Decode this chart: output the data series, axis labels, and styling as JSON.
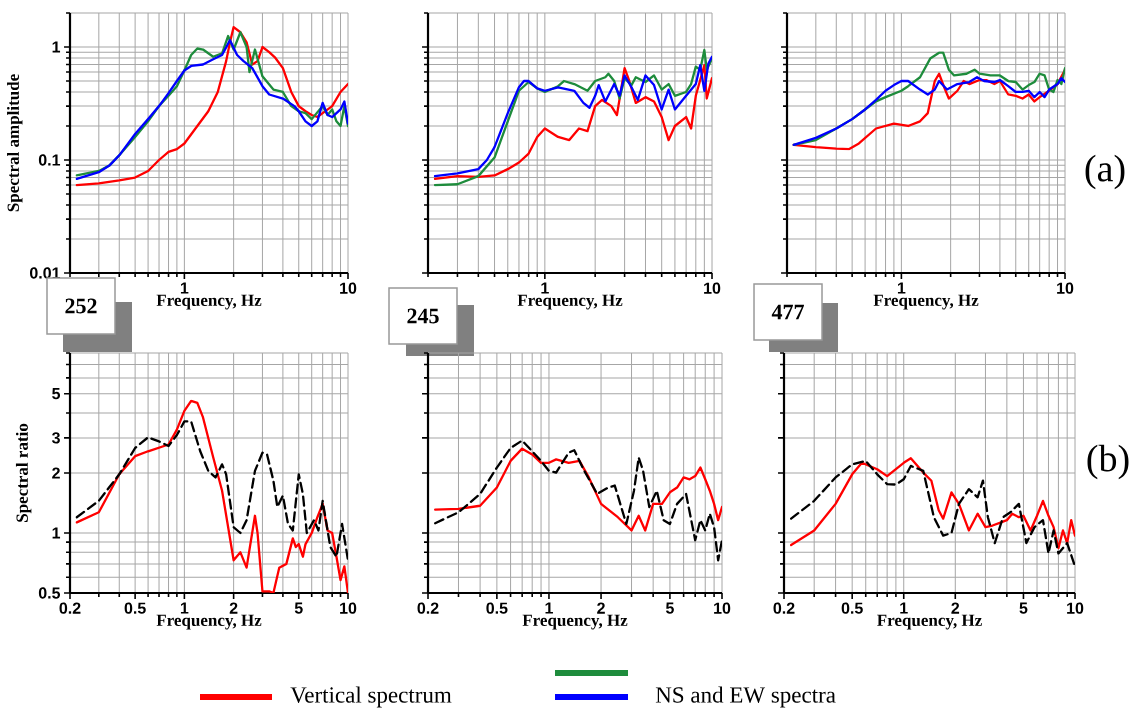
{
  "chart_data": [
    {
      "type": "line",
      "log": "xy",
      "grid": true,
      "xlabel": "Frequency, Hz",
      "ylabel": "Spectral amplitude",
      "xlim": [
        0.2,
        10
      ],
      "ylim": [
        0.01,
        2
      ],
      "xticks": [
        1,
        10
      ],
      "yticks": [
        0.01,
        0.1,
        1
      ],
      "legend": "bottom",
      "annotations": [
        "252"
      ],
      "series": [
        {
          "name": "Vertical spectrum",
          "color": "#ff0000",
          "x": [
            0.22,
            0.3,
            0.4,
            0.5,
            0.6,
            0.7,
            0.8,
            0.9,
            1.0,
            1.2,
            1.4,
            1.6,
            1.8,
            1.9,
            2.0,
            2.2,
            2.4,
            2.6,
            2.8,
            3.0,
            3.3,
            3.6,
            4.0,
            4.5,
            5,
            5.5,
            6,
            6.5,
            7,
            8,
            9,
            10
          ],
          "values": [
            0.06,
            0.062,
            0.066,
            0.07,
            0.08,
            0.1,
            0.118,
            0.125,
            0.14,
            0.2,
            0.27,
            0.4,
            0.75,
            1.1,
            1.5,
            1.35,
            1.1,
            0.7,
            0.75,
            1.0,
            0.9,
            0.8,
            0.65,
            0.4,
            0.3,
            0.27,
            0.25,
            0.24,
            0.26,
            0.3,
            0.4,
            0.47
          ]
        },
        {
          "color": "#1e8c3c",
          "x": [
            0.22,
            0.3,
            0.35,
            0.4,
            0.5,
            0.6,
            0.7,
            0.8,
            0.9,
            1.0,
            1.1,
            1.2,
            1.3,
            1.5,
            1.7,
            1.85,
            2.0,
            2.2,
            2.4,
            2.5,
            2.7,
            3.0,
            3.5,
            4.0,
            4.5,
            5,
            5.5,
            6,
            7,
            7.5,
            8,
            8.5,
            9,
            9.5,
            10
          ],
          "values": [
            0.073,
            0.08,
            0.09,
            0.11,
            0.16,
            0.22,
            0.3,
            0.37,
            0.45,
            0.62,
            0.85,
            0.97,
            0.95,
            0.82,
            0.88,
            1.25,
            0.95,
            1.35,
            1.0,
            0.6,
            0.95,
            0.55,
            0.42,
            0.4,
            0.3,
            0.27,
            0.26,
            0.23,
            0.3,
            0.25,
            0.28,
            0.22,
            0.2,
            0.3,
            0.2
          ]
        },
        {
          "name": "NS and EW spectra",
          "color": "#0000ff",
          "x": [
            0.22,
            0.3,
            0.35,
            0.4,
            0.5,
            0.6,
            0.7,
            0.8,
            0.9,
            1.0,
            1.1,
            1.3,
            1.5,
            1.7,
            1.9,
            2.1,
            2.3,
            2.6,
            3.0,
            3.3,
            4,
            4.7,
            5,
            5.5,
            6,
            6.5,
            7,
            7.5,
            8,
            9,
            9.5,
            10
          ],
          "values": [
            0.068,
            0.078,
            0.09,
            0.11,
            0.17,
            0.23,
            0.3,
            0.39,
            0.5,
            0.62,
            0.68,
            0.7,
            0.78,
            0.85,
            1.15,
            0.85,
            0.75,
            0.65,
            0.45,
            0.38,
            0.35,
            0.3,
            0.27,
            0.22,
            0.2,
            0.22,
            0.32,
            0.25,
            0.24,
            0.28,
            0.33,
            0.21
          ]
        }
      ]
    },
    {
      "type": "line",
      "log": "xy",
      "grid": true,
      "xlabel": "Frequency, Hz",
      "xlim": [
        0.2,
        10
      ],
      "ylim": [
        0.01,
        2
      ],
      "xticks": [
        1,
        10
      ],
      "yticks": [
        0.01,
        0.1,
        1
      ],
      "tick_labels": "x",
      "annotations": [
        "245"
      ],
      "series": [
        {
          "color": "#ff0000",
          "x": [
            0.22,
            0.3,
            0.4,
            0.5,
            0.6,
            0.7,
            0.8,
            0.9,
            1.0,
            1.2,
            1.4,
            1.6,
            1.8,
            2.0,
            2.2,
            2.5,
            2.7,
            3.0,
            3.2,
            3.5,
            4,
            4.5,
            5,
            5.5,
            6,
            7,
            7.5,
            8,
            9,
            9.3,
            10
          ],
          "values": [
            0.068,
            0.072,
            0.071,
            0.073,
            0.083,
            0.095,
            0.114,
            0.16,
            0.19,
            0.16,
            0.15,
            0.19,
            0.18,
            0.3,
            0.34,
            0.3,
            0.25,
            0.65,
            0.5,
            0.32,
            0.36,
            0.33,
            0.24,
            0.15,
            0.2,
            0.24,
            0.19,
            0.37,
            0.69,
            0.35,
            0.53
          ]
        },
        {
          "color": "#1e8c3c",
          "x": [
            0.22,
            0.3,
            0.4,
            0.5,
            0.6,
            0.7,
            0.8,
            0.9,
            1.0,
            1.2,
            1.3,
            1.5,
            1.8,
            2.0,
            2.3,
            2.4,
            2.6,
            2.8,
            3.0,
            3.3,
            3.5,
            4,
            4.5,
            5,
            5.5,
            6,
            7,
            7.5,
            8,
            8.5,
            9,
            9.3,
            10
          ],
          "values": [
            0.06,
            0.061,
            0.072,
            0.105,
            0.22,
            0.41,
            0.49,
            0.43,
            0.4,
            0.45,
            0.5,
            0.47,
            0.41,
            0.5,
            0.54,
            0.58,
            0.5,
            0.35,
            0.53,
            0.46,
            0.54,
            0.49,
            0.56,
            0.42,
            0.47,
            0.37,
            0.4,
            0.47,
            0.67,
            0.63,
            0.94,
            0.63,
            0.79
          ]
        },
        {
          "color": "#0000ff",
          "x": [
            0.22,
            0.3,
            0.4,
            0.45,
            0.5,
            0.6,
            0.7,
            0.75,
            0.8,
            0.9,
            1.0,
            1.2,
            1.5,
            1.7,
            1.85,
            2.0,
            2.1,
            2.3,
            2.6,
            2.8,
            3.0,
            3.3,
            3.6,
            4,
            4.5,
            5,
            5.5,
            6,
            7,
            8,
            8.5,
            9,
            9.5,
            10
          ],
          "values": [
            0.072,
            0.076,
            0.083,
            0.1,
            0.13,
            0.26,
            0.44,
            0.5,
            0.5,
            0.43,
            0.41,
            0.44,
            0.41,
            0.32,
            0.29,
            0.37,
            0.46,
            0.33,
            0.47,
            0.37,
            0.56,
            0.44,
            0.34,
            0.56,
            0.46,
            0.28,
            0.42,
            0.28,
            0.37,
            0.47,
            0.69,
            0.41,
            0.71,
            0.82
          ]
        }
      ]
    },
    {
      "type": "line",
      "log": "xy",
      "grid": true,
      "xlabel": "Frequency, Hz",
      "xlim": [
        0.2,
        10
      ],
      "ylim": [
        0.01,
        2
      ],
      "xticks": [
        1,
        10
      ],
      "yticks": [
        0.01,
        0.1,
        1
      ],
      "tick_labels": "x",
      "annotations": [
        "477",
        "(a)"
      ],
      "series": [
        {
          "color": "#ff0000",
          "x": [
            0.22,
            0.3,
            0.4,
            0.48,
            0.55,
            0.7,
            0.9,
            1.1,
            1.3,
            1.45,
            1.6,
            1.7,
            1.85,
            1.95,
            2.2,
            2.4,
            2.6,
            3.0,
            3.3,
            3.7,
            4.0,
            4.5,
            5,
            5.5,
            6,
            6.5,
            7,
            8,
            9,
            10
          ],
          "values": [
            0.136,
            0.13,
            0.126,
            0.125,
            0.14,
            0.19,
            0.21,
            0.2,
            0.22,
            0.26,
            0.5,
            0.58,
            0.42,
            0.35,
            0.41,
            0.5,
            0.47,
            0.51,
            0.51,
            0.47,
            0.5,
            0.38,
            0.37,
            0.35,
            0.38,
            0.33,
            0.36,
            0.41,
            0.47,
            0.63
          ]
        },
        {
          "color": "#1e8c3c",
          "x": [
            0.22,
            0.3,
            0.4,
            0.5,
            0.6,
            0.7,
            0.8,
            1.0,
            1.1,
            1.3,
            1.5,
            1.7,
            1.8,
            1.95,
            2.1,
            2.5,
            2.8,
            3.0,
            3.5,
            4.0,
            4.5,
            5,
            5.5,
            6,
            6.5,
            7,
            7.5,
            8,
            8.5,
            9,
            9.5,
            10
          ],
          "values": [
            0.136,
            0.15,
            0.19,
            0.23,
            0.28,
            0.33,
            0.36,
            0.41,
            0.45,
            0.54,
            0.79,
            0.89,
            0.89,
            0.63,
            0.56,
            0.58,
            0.63,
            0.58,
            0.56,
            0.56,
            0.5,
            0.49,
            0.42,
            0.46,
            0.49,
            0.58,
            0.56,
            0.42,
            0.4,
            0.51,
            0.47,
            0.65
          ]
        },
        {
          "color": "#0000ff",
          "x": [
            0.22,
            0.3,
            0.4,
            0.5,
            0.6,
            0.7,
            0.8,
            0.9,
            1.0,
            1.1,
            1.3,
            1.45,
            1.6,
            1.7,
            1.9,
            2.2,
            2.6,
            2.9,
            3.2,
            3.7,
            4.0,
            4.5,
            5,
            5.5,
            6,
            6.5,
            7,
            7.5,
            8,
            9,
            9.5,
            10
          ],
          "values": [
            0.136,
            0.157,
            0.19,
            0.23,
            0.28,
            0.34,
            0.41,
            0.46,
            0.5,
            0.5,
            0.42,
            0.38,
            0.42,
            0.5,
            0.42,
            0.47,
            0.49,
            0.54,
            0.5,
            0.49,
            0.51,
            0.45,
            0.4,
            0.4,
            0.41,
            0.36,
            0.4,
            0.36,
            0.42,
            0.47,
            0.53,
            0.49
          ]
        }
      ]
    },
    {
      "type": "line",
      "log": "xy",
      "grid": true,
      "xlabel": "Frequency, Hz",
      "ylabel": "Spectral ratio",
      "xlim": [
        0.2,
        10
      ],
      "ylim": [
        0.5,
        8
      ],
      "xticks": [
        0.2,
        0.5,
        1,
        2,
        5,
        10
      ],
      "yticks": [
        0.5,
        1,
        2,
        3,
        5
      ],
      "series": [
        {
          "color": "#ff0000",
          "x": [
            0.22,
            0.3,
            0.4,
            0.5,
            0.6,
            0.8,
            0.9,
            1.0,
            1.1,
            1.2,
            1.3,
            1.5,
            1.7,
            2.0,
            2.2,
            2.4,
            2.7,
            2.8,
            3.0,
            3.3,
            3.5,
            3.8,
            4.2,
            4.6,
            4.8,
            5.0,
            5.3,
            5.5,
            6,
            6.5,
            7,
            7.5,
            8,
            8.5,
            9,
            9.5,
            10
          ],
          "values": [
            1.13,
            1.27,
            1.97,
            2.43,
            2.57,
            2.78,
            3.3,
            4.1,
            4.6,
            4.5,
            3.8,
            2.4,
            1.63,
            0.73,
            0.8,
            0.67,
            1.22,
            1.0,
            0.51,
            0.51,
            0.5,
            0.67,
            0.7,
            0.94,
            0.85,
            0.88,
            0.76,
            0.88,
            1.0,
            1.2,
            1.4,
            1.03,
            1.0,
            0.76,
            0.58,
            0.68,
            0.5
          ]
        },
        {
          "color": "#000000",
          "line_style": "dashed",
          "x": [
            0.22,
            0.3,
            0.4,
            0.5,
            0.6,
            0.7,
            0.8,
            0.9,
            1.0,
            1.1,
            1.25,
            1.4,
            1.55,
            1.7,
            1.8,
            2.0,
            2.2,
            2.4,
            2.7,
            3.0,
            3.2,
            3.5,
            3.7,
            4.0,
            4.3,
            4.6,
            5.0,
            5.3,
            5.6,
            6.2,
            6.6,
            7.0,
            7.8,
            8.5,
            9.2,
            10
          ],
          "values": [
            1.2,
            1.45,
            1.97,
            2.67,
            3.02,
            2.88,
            2.73,
            3.1,
            3.63,
            3.63,
            2.57,
            2.05,
            1.9,
            2.21,
            1.97,
            1.07,
            1.0,
            1.16,
            2.05,
            2.53,
            2.48,
            1.83,
            1.35,
            1.54,
            1.11,
            1.03,
            1.97,
            1.57,
            1.0,
            1.16,
            1.03,
            1.45,
            0.85,
            0.76,
            1.11,
            0.73
          ]
        }
      ]
    },
    {
      "type": "line",
      "log": "xy",
      "grid": true,
      "xlabel": "Frequency, Hz",
      "xlim": [
        0.2,
        10
      ],
      "ylim": [
        0.5,
        8
      ],
      "xticks": [
        0.2,
        0.5,
        1,
        2,
        5,
        10
      ],
      "yticks": [
        0.5,
        1,
        2,
        3,
        5
      ],
      "tick_labels": "x",
      "series": [
        {
          "color": "#ff0000",
          "x": [
            0.22,
            0.3,
            0.4,
            0.5,
            0.6,
            0.7,
            0.8,
            0.9,
            1.0,
            1.1,
            1.3,
            1.5,
            1.7,
            2.0,
            2.5,
            3.0,
            3.3,
            3.6,
            4.0,
            4.5,
            5,
            5.5,
            6,
            6.5,
            7,
            7.5,
            8,
            8.5,
            9,
            9.5,
            10
          ],
          "values": [
            1.31,
            1.32,
            1.37,
            1.69,
            2.3,
            2.65,
            2.48,
            2.25,
            2.25,
            2.34,
            2.25,
            2.3,
            1.9,
            1.4,
            1.2,
            1.03,
            1.22,
            1.03,
            1.4,
            1.4,
            1.6,
            1.69,
            1.9,
            1.86,
            1.93,
            2.13,
            1.86,
            1.63,
            1.4,
            1.16,
            1.35
          ]
        },
        {
          "color": "#000000",
          "line_style": "dashed",
          "x": [
            0.22,
            0.3,
            0.4,
            0.5,
            0.6,
            0.7,
            0.8,
            0.9,
            1.0,
            1.1,
            1.3,
            1.4,
            1.6,
            1.9,
            2.2,
            2.4,
            2.8,
            3.1,
            3.3,
            3.5,
            3.8,
            4.2,
            4.6,
            5.0,
            5.5,
            6.2,
            7.0,
            7.5,
            8,
            8.5,
            9,
            9.5,
            10
          ],
          "values": [
            1.12,
            1.27,
            1.57,
            2.13,
            2.67,
            2.91,
            2.57,
            2.3,
            2.05,
            2.01,
            2.53,
            2.6,
            2.05,
            1.57,
            1.69,
            1.73,
            1.11,
            1.63,
            2.39,
            2.05,
            1.35,
            1.63,
            1.16,
            1.11,
            1.4,
            1.57,
            0.92,
            1.16,
            1.03,
            1.25,
            1.07,
            0.73,
            0.92
          ]
        }
      ]
    },
    {
      "type": "line",
      "log": "xy",
      "grid": true,
      "xlabel": "Frequency, Hz",
      "xlim": [
        0.2,
        10
      ],
      "ylim": [
        0.5,
        8
      ],
      "xticks": [
        0.2,
        0.5,
        1,
        2,
        5,
        10
      ],
      "yticks": [
        0.5,
        1,
        2,
        3,
        5
      ],
      "tick_labels": "x",
      "annotations": [
        "(b)"
      ],
      "series": [
        {
          "color": "#ff0000",
          "x": [
            0.22,
            0.3,
            0.4,
            0.5,
            0.57,
            0.7,
            0.8,
            1.0,
            1.1,
            1.3,
            1.45,
            1.6,
            1.7,
            1.9,
            2.1,
            2.4,
            2.7,
            3.0,
            3.3,
            3.7,
            4.0,
            4.3,
            4.7,
            5.0,
            5.5,
            6,
            6.5,
            7,
            7.5,
            8,
            8.5,
            9,
            9.5,
            10
          ],
          "values": [
            0.87,
            1.03,
            1.4,
            1.97,
            2.25,
            2.09,
            1.93,
            2.25,
            2.37,
            2.01,
            1.83,
            1.3,
            1.18,
            1.6,
            1.4,
            1.03,
            1.25,
            1.07,
            1.09,
            1.13,
            1.16,
            1.25,
            1.2,
            1.22,
            1.03,
            1.22,
            1.45,
            1.22,
            1.07,
            0.84,
            1.03,
            0.89,
            1.16,
            0.97
          ]
        },
        {
          "color": "#000000",
          "line_style": "dashed",
          "x": [
            0.22,
            0.3,
            0.4,
            0.5,
            0.6,
            0.7,
            0.8,
            0.9,
            1.0,
            1.1,
            1.3,
            1.5,
            1.7,
            1.9,
            2.1,
            2.4,
            2.7,
            2.9,
            3.1,
            3.4,
            3.8,
            4.2,
            4.7,
            5.2,
            5.8,
            6.5,
            7,
            7.5,
            8,
            9,
            10
          ],
          "values": [
            1.18,
            1.45,
            1.9,
            2.21,
            2.3,
            1.97,
            1.76,
            1.75,
            1.86,
            2.17,
            2.05,
            1.2,
            0.97,
            1.0,
            1.4,
            1.66,
            1.51,
            1.83,
            1.2,
            0.89,
            1.2,
            1.27,
            1.4,
            0.89,
            1.07,
            1.16,
            0.79,
            1.03,
            0.79,
            0.89,
            0.68
          ]
        }
      ]
    }
  ]
}
